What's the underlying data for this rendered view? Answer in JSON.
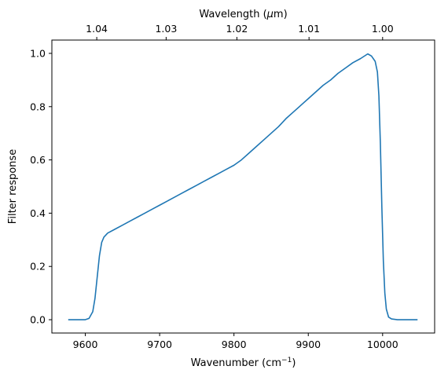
{
  "chart_data": {
    "type": "line",
    "title": "",
    "xlabel": "Wavenumber (cm",
    "xlabel_sup": "−1",
    "xlabel_tail": ")",
    "ylabel": "Filter response",
    "top_xlabel_pre": "Wavelength (",
    "top_xlabel_mu": "μ",
    "top_xlabel_post": "m)",
    "xlim": [
      9555,
      10070
    ],
    "ylim": [
      -0.05,
      1.05
    ],
    "grid": false,
    "x_ticks": [
      {
        "value": 9600,
        "label": "9600"
      },
      {
        "value": 9700,
        "label": "9700"
      },
      {
        "value": 9800,
        "label": "9800"
      },
      {
        "value": 9900,
        "label": "9900"
      },
      {
        "value": 10000,
        "label": "10000"
      }
    ],
    "y_ticks": [
      {
        "value": 0.0,
        "label": "0.0"
      },
      {
        "value": 0.2,
        "label": "0.2"
      },
      {
        "value": 0.4,
        "label": "0.4"
      },
      {
        "value": 0.6,
        "label": "0.6"
      },
      {
        "value": 0.8,
        "label": "0.8"
      },
      {
        "value": 1.0,
        "label": "1.0"
      }
    ],
    "top_ticks": [
      {
        "wavelength_um": 1.04,
        "label": "1.04"
      },
      {
        "wavelength_um": 1.03,
        "label": "1.03"
      },
      {
        "wavelength_um": 1.02,
        "label": "1.02"
      },
      {
        "wavelength_um": 1.01,
        "label": "1.01"
      },
      {
        "wavelength_um": 1.0,
        "label": "1.00"
      }
    ],
    "series": [
      {
        "color": "#1f77b4",
        "x": [
          9577,
          9590,
          9600,
          9605,
          9610,
          9613,
          9616,
          9619,
          9622,
          9625,
          9630,
          9640,
          9650,
          9660,
          9670,
          9680,
          9690,
          9700,
          9710,
          9720,
          9730,
          9740,
          9750,
          9760,
          9770,
          9780,
          9790,
          9800,
          9810,
          9820,
          9830,
          9840,
          9850,
          9860,
          9870,
          9880,
          9890,
          9900,
          9910,
          9920,
          9930,
          9940,
          9950,
          9960,
          9970,
          9980,
          9985,
          9990,
          9993,
          9995,
          9997,
          9999,
          10001,
          10003,
          10005,
          10008,
          10012,
          10020,
          10030,
          10047
        ],
        "y": [
          0.0,
          0.0,
          0.0,
          0.005,
          0.03,
          0.08,
          0.16,
          0.24,
          0.29,
          0.31,
          0.325,
          0.34,
          0.355,
          0.37,
          0.385,
          0.4,
          0.415,
          0.43,
          0.445,
          0.46,
          0.475,
          0.49,
          0.505,
          0.52,
          0.535,
          0.55,
          0.565,
          0.58,
          0.6,
          0.625,
          0.65,
          0.675,
          0.7,
          0.725,
          0.755,
          0.78,
          0.805,
          0.83,
          0.855,
          0.88,
          0.9,
          0.925,
          0.945,
          0.965,
          0.98,
          0.998,
          0.99,
          0.97,
          0.93,
          0.84,
          0.66,
          0.42,
          0.22,
          0.1,
          0.04,
          0.01,
          0.003,
          0.0,
          0.0,
          0.0
        ]
      }
    ]
  }
}
